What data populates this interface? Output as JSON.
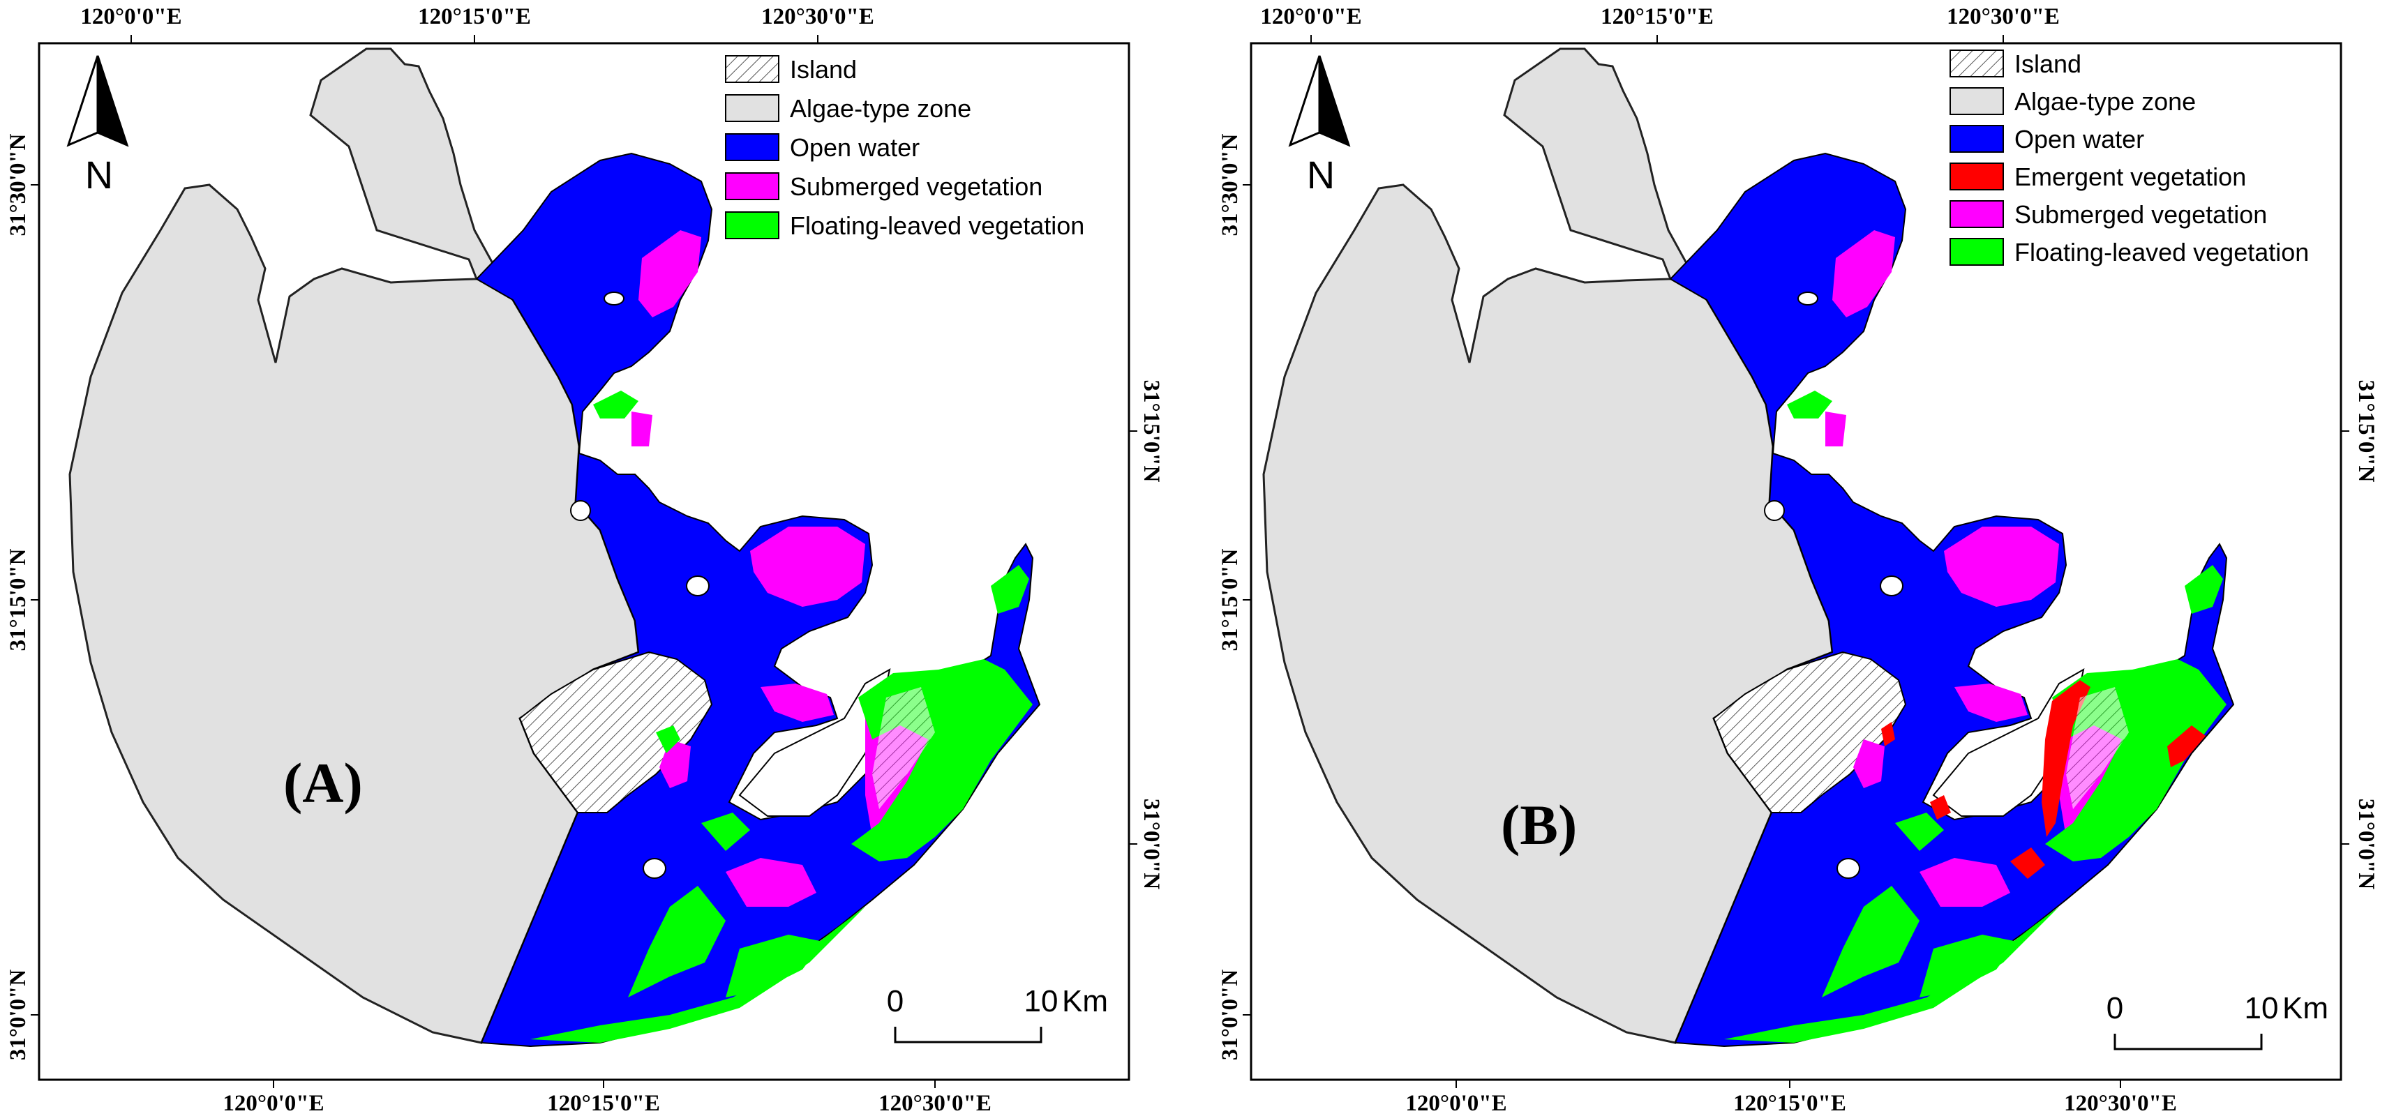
{
  "figure": {
    "panels": [
      {
        "id": "A",
        "label": "(A)",
        "top_ticks": [
          "120°0'0\"E",
          "120°15'0\"E",
          "120°30'0\"E"
        ],
        "bottom_ticks": [
          "120°0'0\"E",
          "120°15'0\"E",
          "120°30'0\"E"
        ],
        "left_ticks": [
          "31°30'0\"N",
          "31°15'0\"N",
          "31°0'0\"N"
        ],
        "right_ticks": [
          "31°15'0\"N",
          "31°0'0\"N"
        ],
        "legend": [
          {
            "label": "Island",
            "swatch": "hatch"
          },
          {
            "label": "Algae-type zone",
            "color": "#e1e1e1"
          },
          {
            "label": "Open water",
            "color": "#0000ff"
          },
          {
            "label": "Submerged vegetation",
            "color": "#ff00ff"
          },
          {
            "label": "Floating-leaved vegetation",
            "color": "#00ff00"
          }
        ],
        "north": "N",
        "scale": {
          "start": "0",
          "end": "10",
          "unit": "Km"
        }
      },
      {
        "id": "B",
        "label": "(B)",
        "top_ticks": [
          "120°0'0\"E",
          "120°15'0\"E",
          "120°30'0\"E"
        ],
        "bottom_ticks": [
          "120°0'0\"E",
          "120°15'0\"E",
          "120°30'0\"E"
        ],
        "left_ticks": [
          "31°30'0\"N",
          "31°15'0\"N",
          "31°0'0\"N"
        ],
        "right_ticks": [
          "31°15'0\"N",
          "31°0'0\"N"
        ],
        "legend": [
          {
            "label": "Island",
            "swatch": "hatch"
          },
          {
            "label": "Algae-type zone",
            "color": "#e1e1e1"
          },
          {
            "label": "Open water",
            "color": "#0000ff"
          },
          {
            "label": "Emergent vegetation",
            "color": "#ff0000"
          },
          {
            "label": "Submerged vegetation",
            "color": "#ff00ff"
          },
          {
            "label": "Floating-leaved vegetation",
            "color": "#00ff00"
          }
        ],
        "north": "N",
        "scale": {
          "start": "0",
          "end": "10",
          "unit": "Km"
        }
      }
    ]
  }
}
